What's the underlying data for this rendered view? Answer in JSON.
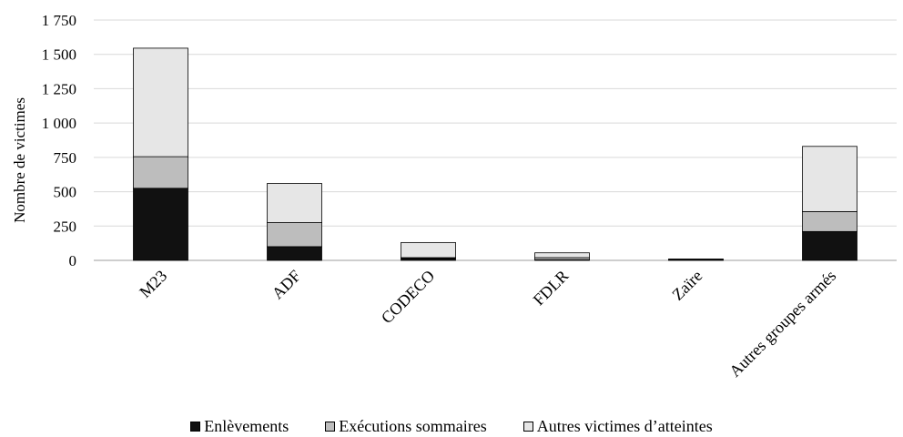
{
  "chart_data": {
    "type": "bar",
    "stacked": true,
    "title": "",
    "xlabel": "",
    "ylabel": "Nombre de victimes",
    "ylim": [
      0,
      1750
    ],
    "yticks": [
      0,
      250,
      500,
      750,
      1000,
      1250,
      1500,
      1750
    ],
    "ytick_labels": [
      "0",
      "250",
      "500",
      "750",
      "1 000",
      "1 250",
      "1 500",
      "1 750"
    ],
    "grid": true,
    "legend_position": "bottom",
    "categories": [
      "M23",
      "ADF",
      "CODECO",
      "FDLR",
      "Zaïre",
      "Autres groupes armés"
    ],
    "series": [
      {
        "name": "Enlèvements",
        "color": "#111111",
        "values": [
          525,
          100,
          15,
          5,
          3,
          210
        ]
      },
      {
        "name": "Exécutions sommaires",
        "color": "#bdbdbd",
        "values": [
          230,
          175,
          5,
          15,
          2,
          145
        ]
      },
      {
        "name": "Autres victimes d’atteintes",
        "color": "#e6e6e6",
        "values": [
          790,
          285,
          110,
          35,
          5,
          475
        ]
      }
    ]
  }
}
